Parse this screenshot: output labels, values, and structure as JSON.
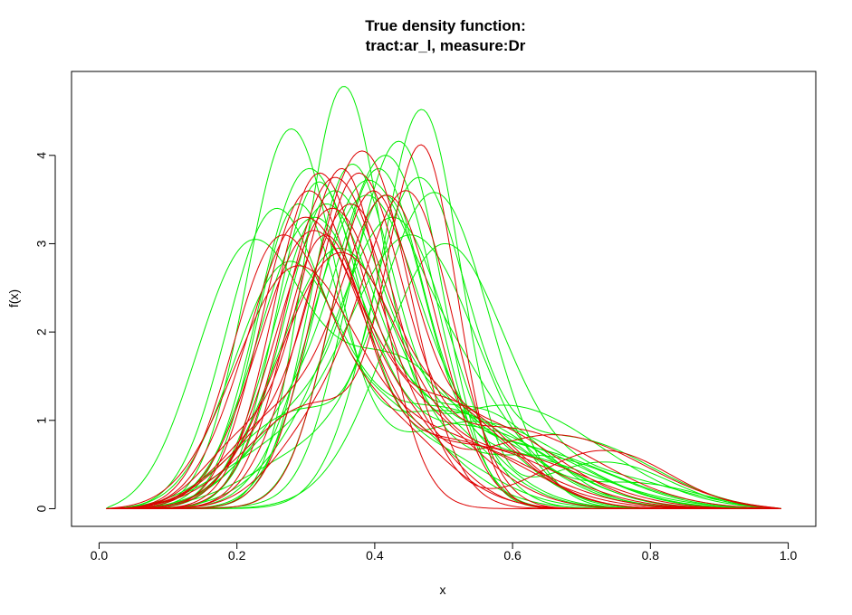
{
  "chart_data": {
    "type": "line",
    "title": [
      "True density function:",
      "tract:ar_l, measure:Dr"
    ],
    "xlabel": "x",
    "ylabel": "f(x)",
    "xlim": [
      -0.04,
      1.04
    ],
    "ylim": [
      -0.2,
      4.95
    ],
    "x_ticks": [
      0.0,
      0.2,
      0.4,
      0.6,
      0.8,
      1.0
    ],
    "x_tick_labels": [
      "0.0",
      "0.2",
      "0.4",
      "0.6",
      "0.8",
      "1.0"
    ],
    "y_ticks": [
      0,
      1,
      2,
      3,
      4
    ],
    "y_tick_labels": [
      "0",
      "1",
      "2",
      "3",
      "4"
    ],
    "grid": false,
    "legend": "none",
    "colors": {
      "green": "#00ee00",
      "red": "#dd0000"
    },
    "x_domain": [
      0.01,
      0.99
    ],
    "series": [
      {
        "color": "green",
        "components": [
          [
            1.0,
            0.27,
            0.065
          ],
          [
            0.2,
            0.55,
            0.14
          ]
        ]
      },
      {
        "color": "green",
        "components": [
          [
            1.0,
            0.35,
            0.055
          ],
          [
            0.25,
            0.6,
            0.15
          ]
        ]
      },
      {
        "color": "green",
        "components": [
          [
            1.0,
            0.47,
            0.055
          ],
          [
            0.3,
            0.28,
            0.1
          ],
          [
            0.15,
            0.75,
            0.1
          ]
        ]
      },
      {
        "color": "green",
        "components": [
          [
            1.0,
            0.44,
            0.06
          ],
          [
            0.35,
            0.3,
            0.09
          ]
        ]
      },
      {
        "color": "green",
        "components": [
          [
            1.0,
            0.49,
            0.08
          ],
          [
            0.2,
            0.3,
            0.1
          ]
        ]
      },
      {
        "color": "green",
        "components": [
          [
            1.0,
            0.5,
            0.09
          ],
          [
            0.15,
            0.75,
            0.12
          ]
        ]
      },
      {
        "color": "green",
        "components": [
          [
            1.0,
            0.37,
            0.07
          ],
          [
            0.5,
            0.5,
            0.09
          ],
          [
            0.12,
            0.8,
            0.1
          ]
        ]
      },
      {
        "color": "green",
        "components": [
          [
            1.0,
            0.26,
            0.08
          ],
          [
            0.35,
            0.5,
            0.12
          ]
        ]
      },
      {
        "color": "green",
        "components": [
          [
            1.0,
            0.3,
            0.08
          ],
          [
            0.25,
            0.55,
            0.12
          ]
        ]
      },
      {
        "color": "green",
        "components": [
          [
            1.0,
            0.45,
            0.1
          ],
          [
            0.2,
            0.22,
            0.08
          ]
        ]
      },
      {
        "color": "green",
        "components": [
          [
            1.0,
            0.4,
            0.065
          ],
          [
            0.2,
            0.6,
            0.12
          ]
        ]
      },
      {
        "color": "green",
        "components": [
          [
            1.0,
            0.33,
            0.07
          ],
          [
            0.3,
            0.5,
            0.1
          ]
        ]
      },
      {
        "color": "green",
        "components": [
          [
            1.0,
            0.31,
            0.06
          ],
          [
            0.2,
            0.45,
            0.1
          ]
        ]
      },
      {
        "color": "green",
        "components": [
          [
            1.0,
            0.2,
            0.08
          ],
          [
            0.45,
            0.42,
            0.11
          ]
        ]
      },
      {
        "color": "green",
        "components": [
          [
            1.0,
            0.42,
            0.07
          ],
          [
            0.3,
            0.28,
            0.08
          ]
        ]
      },
      {
        "color": "green",
        "components": [
          [
            1.0,
            0.38,
            0.08
          ],
          [
            0.2,
            0.62,
            0.14
          ]
        ]
      },
      {
        "color": "green",
        "components": [
          [
            1.0,
            0.29,
            0.07
          ],
          [
            0.3,
            0.45,
            0.1
          ]
        ]
      },
      {
        "color": "green",
        "components": [
          [
            1.0,
            0.36,
            0.06
          ],
          [
            0.25,
            0.52,
            0.12
          ]
        ]
      },
      {
        "color": "green",
        "components": [
          [
            1.0,
            0.24,
            0.07
          ],
          [
            0.3,
            0.4,
            0.1
          ]
        ]
      },
      {
        "color": "green",
        "components": [
          [
            1.0,
            0.41,
            0.06
          ],
          [
            0.2,
            0.58,
            0.15
          ]
        ]
      },
      {
        "color": "green",
        "components": [
          [
            1.0,
            0.34,
            0.09
          ],
          [
            0.2,
            0.65,
            0.12
          ]
        ]
      },
      {
        "color": "green",
        "components": [
          [
            1.0,
            0.28,
            0.06
          ],
          [
            0.3,
            0.5,
            0.14
          ]
        ]
      },
      {
        "color": "green",
        "components": [
          [
            1.0,
            0.43,
            0.08
          ],
          [
            0.2,
            0.3,
            0.08
          ]
        ]
      },
      {
        "color": "green",
        "components": [
          [
            1.0,
            0.46,
            0.07
          ],
          [
            0.25,
            0.7,
            0.13
          ]
        ]
      },
      {
        "color": "green",
        "components": [
          [
            1.0,
            0.32,
            0.075
          ],
          [
            0.3,
            0.55,
            0.1
          ]
        ]
      },
      {
        "color": "red",
        "components": [
          [
            1.0,
            0.33,
            0.07
          ],
          [
            0.3,
            0.5,
            0.1
          ]
        ]
      },
      {
        "color": "red",
        "components": [
          [
            1.0,
            0.38,
            0.07
          ],
          [
            0.2,
            0.22,
            0.07
          ]
        ]
      },
      {
        "color": "red",
        "components": [
          [
            1.0,
            0.47,
            0.05
          ],
          [
            0.35,
            0.3,
            0.1
          ]
        ]
      },
      {
        "color": "red",
        "components": [
          [
            1.0,
            0.3,
            0.08
          ],
          [
            0.2,
            0.55,
            0.12
          ]
        ]
      },
      {
        "color": "red",
        "components": [
          [
            1.0,
            0.35,
            0.06
          ],
          [
            0.25,
            0.2,
            0.06
          ]
        ]
      },
      {
        "color": "red",
        "components": [
          [
            1.0,
            0.28,
            0.08
          ],
          [
            0.3,
            0.45,
            0.1
          ]
        ]
      },
      {
        "color": "red",
        "components": [
          [
            1.0,
            0.32,
            0.06
          ],
          [
            0.25,
            0.5,
            0.13
          ]
        ]
      },
      {
        "color": "red",
        "components": [
          [
            1.0,
            0.36,
            0.075
          ],
          [
            0.22,
            0.75,
            0.1
          ]
        ]
      },
      {
        "color": "red",
        "components": [
          [
            1.0,
            0.25,
            0.07
          ],
          [
            0.3,
            0.4,
            0.09
          ]
        ]
      },
      {
        "color": "red",
        "components": [
          [
            1.0,
            0.42,
            0.07
          ],
          [
            0.35,
            0.25,
            0.08
          ]
        ]
      },
      {
        "color": "red",
        "components": [
          [
            1.0,
            0.34,
            0.09
          ],
          [
            0.2,
            0.6,
            0.12
          ]
        ]
      },
      {
        "color": "red",
        "components": [
          [
            1.0,
            0.31,
            0.065
          ],
          [
            0.3,
            0.5,
            0.1
          ]
        ]
      },
      {
        "color": "red",
        "components": [
          [
            1.0,
            0.39,
            0.06
          ],
          [
            0.3,
            0.55,
            0.12
          ]
        ]
      },
      {
        "color": "red",
        "components": [
          [
            1.0,
            0.29,
            0.065
          ],
          [
            0.3,
            0.42,
            0.08
          ]
        ]
      },
      {
        "color": "red",
        "components": [
          [
            1.0,
            0.37,
            0.065
          ],
          [
            0.25,
            0.6,
            0.14
          ]
        ]
      },
      {
        "color": "red",
        "components": [
          [
            1.0,
            0.27,
            0.09
          ],
          [
            0.25,
            0.5,
            0.12
          ]
        ]
      },
      {
        "color": "red",
        "components": [
          [
            1.0,
            0.45,
            0.065
          ],
          [
            0.3,
            0.32,
            0.07
          ]
        ]
      },
      {
        "color": "red",
        "components": [
          [
            1.0,
            0.33,
            0.08
          ],
          [
            0.25,
            0.68,
            0.14
          ]
        ]
      }
    ],
    "series_peaks": [
      4.3,
      4.78,
      4.52,
      4.16,
      3.58,
      3.0,
      3.72,
      2.8,
      3.3,
      3.1,
      3.85,
      3.6,
      3.7,
      3.05,
      4.0,
      3.55,
      3.85,
      3.9,
      3.4,
      3.55,
      2.95,
      3.45,
      3.3,
      3.75,
      3.45,
      3.75,
      4.05,
      4.12,
      3.15,
      3.85,
      3.3,
      3.1,
      3.45,
      3.1,
      3.55,
      2.9,
      3.8,
      3.6,
      3.6,
      3.8,
      2.75,
      3.6,
      3.4
    ]
  }
}
